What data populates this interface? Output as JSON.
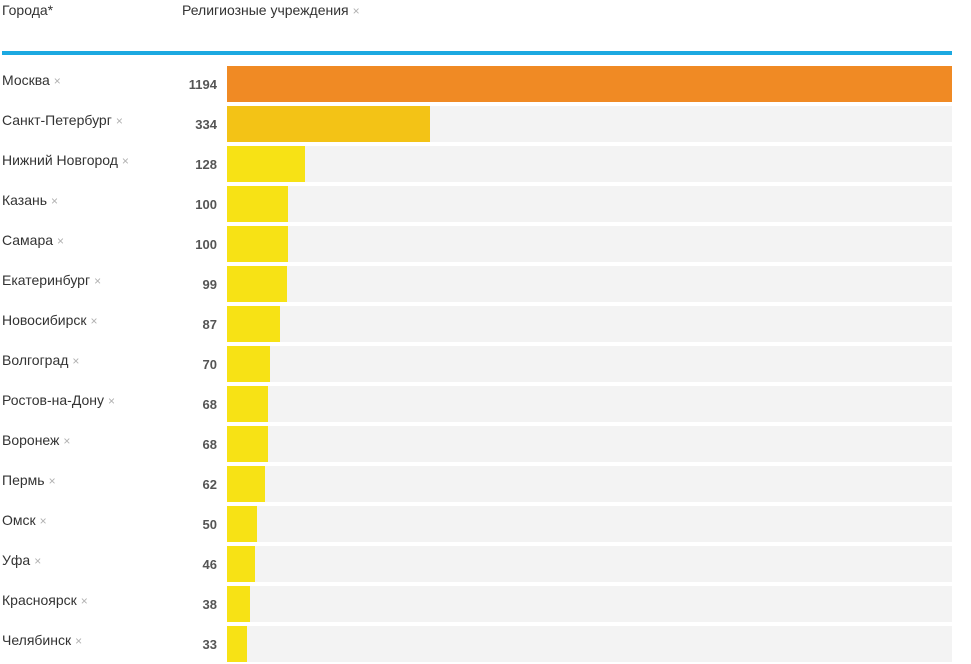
{
  "header": {
    "city_label": "Города*",
    "metric_label": "Религиозные учреждения",
    "remove_glyph": "×"
  },
  "colors": {
    "accent": "#1ca9e1",
    "track": "#f3f3f3",
    "bar_max": "#f08a24",
    "bar_high": "#f3c316",
    "bar_low": "#f7e215"
  },
  "chart_data": {
    "type": "bar",
    "orientation": "horizontal",
    "categories": [
      "Москва",
      "Санкт-Петербург",
      "Нижний Новгород",
      "Казань",
      "Самара",
      "Екатеринбург",
      "Новосибирск",
      "Волгоград",
      "Ростов-на-Дону",
      "Воронеж",
      "Пермь",
      "Омск",
      "Уфа",
      "Красноярск",
      "Челябинск"
    ],
    "values": [
      1194,
      334,
      128,
      100,
      100,
      99,
      87,
      70,
      68,
      68,
      62,
      50,
      46,
      38,
      33
    ],
    "xlabel": "Религиозные учреждения",
    "ylabel": "Города*",
    "xlim": [
      0,
      1194
    ],
    "grid": false
  }
}
